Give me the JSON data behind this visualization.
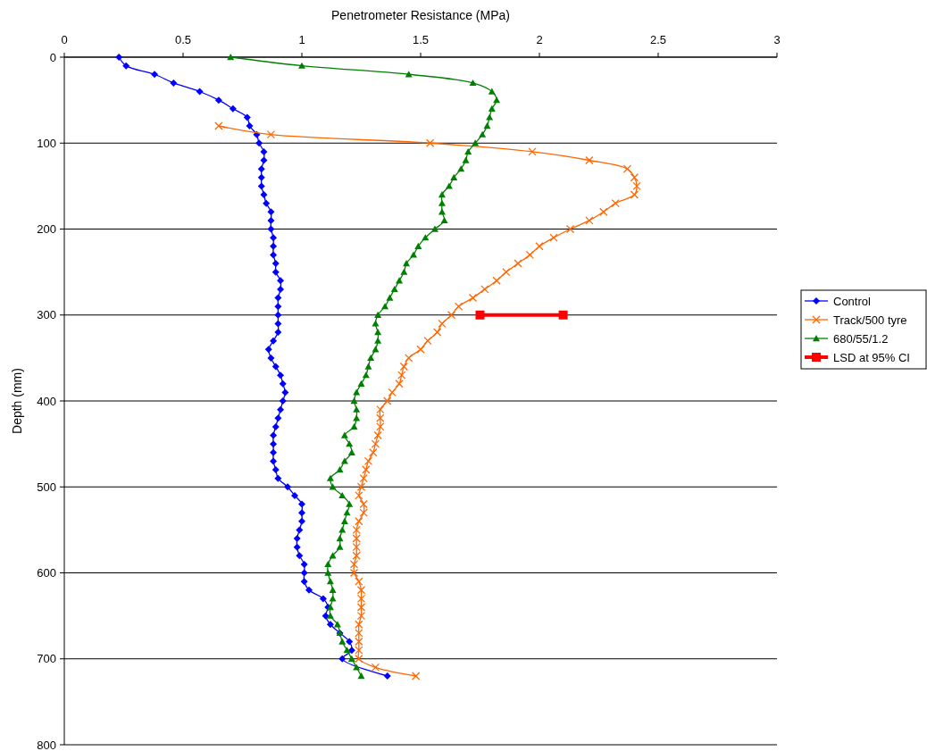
{
  "chart_data": {
    "type": "line",
    "xlabel": "Penetrometer Resistance (MPa)",
    "ylabel": "Depth (mm)",
    "xlim": [
      0,
      3
    ],
    "xticks": [
      0,
      0.5,
      1,
      1.5,
      2,
      2.5,
      3
    ],
    "ylim": [
      800,
      0
    ],
    "yticks": [
      0,
      100,
      200,
      300,
      400,
      500,
      600,
      700,
      800
    ],
    "grid": "y",
    "legend": "right",
    "series": [
      {
        "name": "Control",
        "color": "#0000ff",
        "marker": "diamond",
        "x": [
          0.23,
          0.26,
          0.38,
          0.46,
          0.57,
          0.65,
          0.71,
          0.77,
          0.78,
          0.81,
          0.82,
          0.84,
          0.84,
          0.83,
          0.83,
          0.83,
          0.84,
          0.85,
          0.87,
          0.87,
          0.87,
          0.88,
          0.88,
          0.88,
          0.89,
          0.89,
          0.91,
          0.91,
          0.9,
          0.9,
          0.9,
          0.9,
          0.9,
          0.88,
          0.86,
          0.87,
          0.89,
          0.91,
          0.92,
          0.93,
          0.92,
          0.91,
          0.9,
          0.89,
          0.88,
          0.88,
          0.88,
          0.88,
          0.89,
          0.9,
          0.94,
          0.97,
          1.0,
          1.0,
          1.0,
          0.99,
          0.98,
          0.98,
          0.99,
          1.01,
          1.01,
          1.01,
          1.03,
          1.09,
          1.11,
          1.1,
          1.12,
          1.16,
          1.2,
          1.21,
          1.17,
          1.36
        ],
        "values": [
          0,
          10,
          20,
          30,
          40,
          50,
          60,
          70,
          80,
          90,
          100,
          110,
          120,
          130,
          140,
          150,
          160,
          170,
          180,
          190,
          200,
          210,
          220,
          230,
          240,
          250,
          260,
          270,
          280,
          290,
          300,
          310,
          320,
          330,
          340,
          350,
          360,
          370,
          380,
          390,
          400,
          410,
          420,
          430,
          440,
          450,
          460,
          470,
          480,
          490,
          500,
          510,
          520,
          530,
          540,
          550,
          560,
          570,
          580,
          590,
          600,
          610,
          620,
          630,
          640,
          650,
          660,
          670,
          680,
          690,
          700,
          720
        ]
      },
      {
        "name": "Track/500 tyre",
        "color": "#ff6600",
        "marker": "cross",
        "x": [
          0.65,
          0.87,
          1.54,
          1.97,
          2.21,
          2.37,
          2.4,
          2.41,
          2.4,
          2.32,
          2.27,
          2.21,
          2.13,
          2.06,
          2.0,
          1.96,
          1.91,
          1.86,
          1.82,
          1.77,
          1.72,
          1.66,
          1.63,
          1.59,
          1.57,
          1.53,
          1.5,
          1.45,
          1.43,
          1.42,
          1.41,
          1.38,
          1.36,
          1.33,
          1.33,
          1.33,
          1.32,
          1.31,
          1.3,
          1.28,
          1.27,
          1.26,
          1.25,
          1.24,
          1.26,
          1.26,
          1.24,
          1.23,
          1.23,
          1.23,
          1.23,
          1.22,
          1.22,
          1.24,
          1.25,
          1.25,
          1.25,
          1.25,
          1.24,
          1.24,
          1.24,
          1.24,
          1.24,
          1.31,
          1.48
        ],
        "values": [
          80,
          90,
          100,
          110,
          120,
          130,
          140,
          150,
          160,
          170,
          180,
          190,
          200,
          210,
          220,
          230,
          240,
          250,
          260,
          270,
          280,
          290,
          300,
          310,
          320,
          330,
          340,
          350,
          360,
          370,
          380,
          390,
          400,
          410,
          420,
          430,
          440,
          450,
          460,
          470,
          480,
          490,
          500,
          510,
          520,
          530,
          540,
          550,
          560,
          570,
          580,
          590,
          600,
          610,
          620,
          630,
          640,
          650,
          660,
          670,
          680,
          690,
          700,
          710,
          720
        ]
      },
      {
        "name": "680/55/1.2",
        "color": "#008000",
        "marker": "triangle",
        "x": [
          0.7,
          1.0,
          1.45,
          1.72,
          1.8,
          1.82,
          1.8,
          1.79,
          1.78,
          1.76,
          1.73,
          1.7,
          1.69,
          1.67,
          1.64,
          1.62,
          1.59,
          1.59,
          1.59,
          1.6,
          1.56,
          1.52,
          1.49,
          1.47,
          1.44,
          1.43,
          1.41,
          1.39,
          1.37,
          1.35,
          1.32,
          1.31,
          1.32,
          1.32,
          1.31,
          1.29,
          1.28,
          1.27,
          1.25,
          1.23,
          1.22,
          1.23,
          1.23,
          1.22,
          1.18,
          1.2,
          1.21,
          1.18,
          1.16,
          1.12,
          1.13,
          1.17,
          1.2,
          1.19,
          1.18,
          1.17,
          1.16,
          1.16,
          1.13,
          1.11,
          1.11,
          1.12,
          1.13,
          1.13,
          1.12,
          1.12,
          1.15,
          1.16,
          1.17,
          1.19,
          1.21,
          1.23,
          1.25
        ],
        "values": [
          0,
          10,
          20,
          30,
          40,
          50,
          60,
          70,
          80,
          90,
          100,
          110,
          120,
          130,
          140,
          150,
          160,
          170,
          180,
          190,
          200,
          210,
          220,
          230,
          240,
          250,
          260,
          270,
          280,
          290,
          300,
          310,
          320,
          330,
          340,
          350,
          360,
          370,
          380,
          390,
          400,
          410,
          420,
          430,
          440,
          450,
          460,
          470,
          480,
          490,
          500,
          510,
          520,
          530,
          540,
          550,
          560,
          570,
          580,
          590,
          600,
          610,
          620,
          630,
          640,
          650,
          660,
          670,
          680,
          690,
          700,
          710,
          720
        ]
      },
      {
        "name": "LSD at 95% CI",
        "color": "#ff0000",
        "marker": "square",
        "x": [
          1.75,
          2.1
        ],
        "values": [
          300,
          300
        ]
      }
    ]
  }
}
